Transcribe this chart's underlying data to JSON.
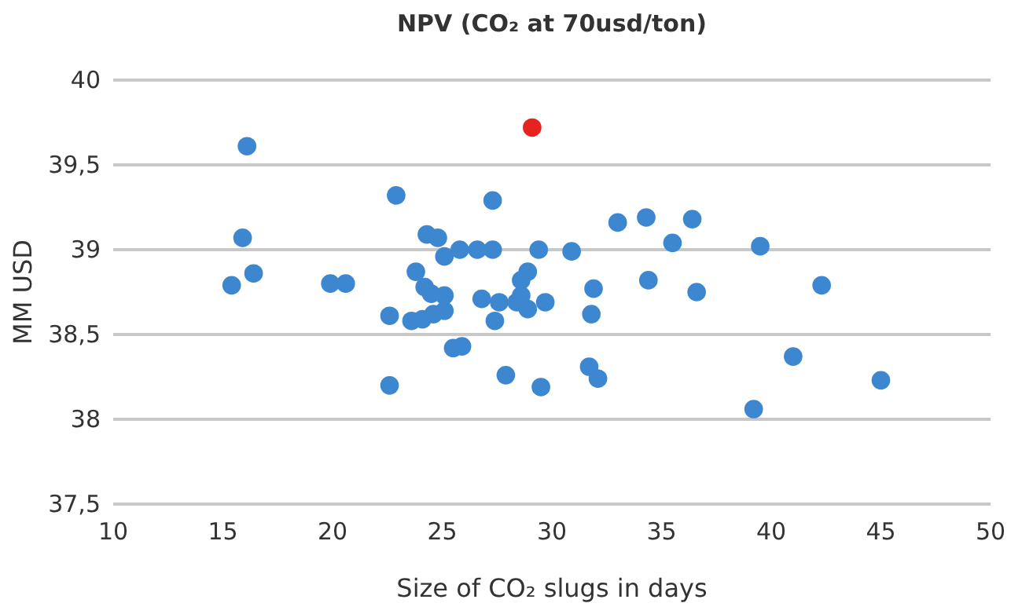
{
  "chart_data": {
    "type": "scatter",
    "title": "NPV (CO₂ at 70usd/ton)",
    "xlabel": "Size of CO₂ slugs in days",
    "ylabel": "MM USD",
    "xlim": [
      10,
      50
    ],
    "xticks": [
      10,
      15,
      20,
      25,
      30,
      35,
      40,
      45,
      50
    ],
    "ylim": [
      37.5,
      40
    ],
    "yticks": [
      {
        "value": 37.5,
        "label": "37,5"
      },
      38,
      {
        "value": 38.5,
        "label": "38,5"
      },
      39,
      {
        "value": 39.5,
        "label": "39,5"
      },
      40
    ],
    "grid": "y",
    "marker": "circle",
    "series": [
      {
        "color": "#3d87d0",
        "x": [
          16.1,
          15.9,
          16.4,
          15.4,
          19.9,
          20.6,
          22.9,
          22.6,
          22.6,
          23.6,
          24.1,
          24.6,
          25.1,
          24.3,
          24.8,
          25.1,
          23.8,
          24.2,
          24.5,
          25.5,
          25.9,
          25.8,
          26.6,
          27.3,
          27.3,
          29.4,
          30.9,
          33.0,
          34.3,
          36.4,
          35.5,
          34.4,
          36.6,
          31.9,
          31.8,
          28.9,
          28.6,
          28.6,
          28.9,
          28.4,
          29.7,
          26.8,
          27.6,
          27.4,
          25.1,
          27.9,
          29.5,
          31.7,
          32.1,
          39.2,
          39.5,
          42.3,
          41.0,
          45.0
        ],
        "values": [
          39.61,
          39.07,
          38.86,
          38.79,
          38.8,
          38.8,
          39.32,
          38.61,
          38.2,
          38.58,
          38.59,
          38.62,
          38.64,
          39.09,
          39.07,
          38.96,
          38.87,
          38.78,
          38.74,
          38.42,
          38.43,
          39.0,
          39.0,
          39.0,
          39.29,
          39.0,
          38.99,
          39.16,
          39.19,
          39.18,
          39.04,
          38.82,
          38.75,
          38.77,
          38.62,
          38.87,
          38.82,
          38.73,
          38.65,
          38.69,
          38.69,
          38.71,
          38.69,
          38.58,
          38.73,
          38.26,
          38.19,
          38.31,
          38.24,
          38.06,
          39.02,
          38.79,
          38.37,
          38.23
        ]
      },
      {
        "color": "#e8221e",
        "x": [
          29.1
        ],
        "values": [
          39.72
        ]
      }
    ]
  }
}
